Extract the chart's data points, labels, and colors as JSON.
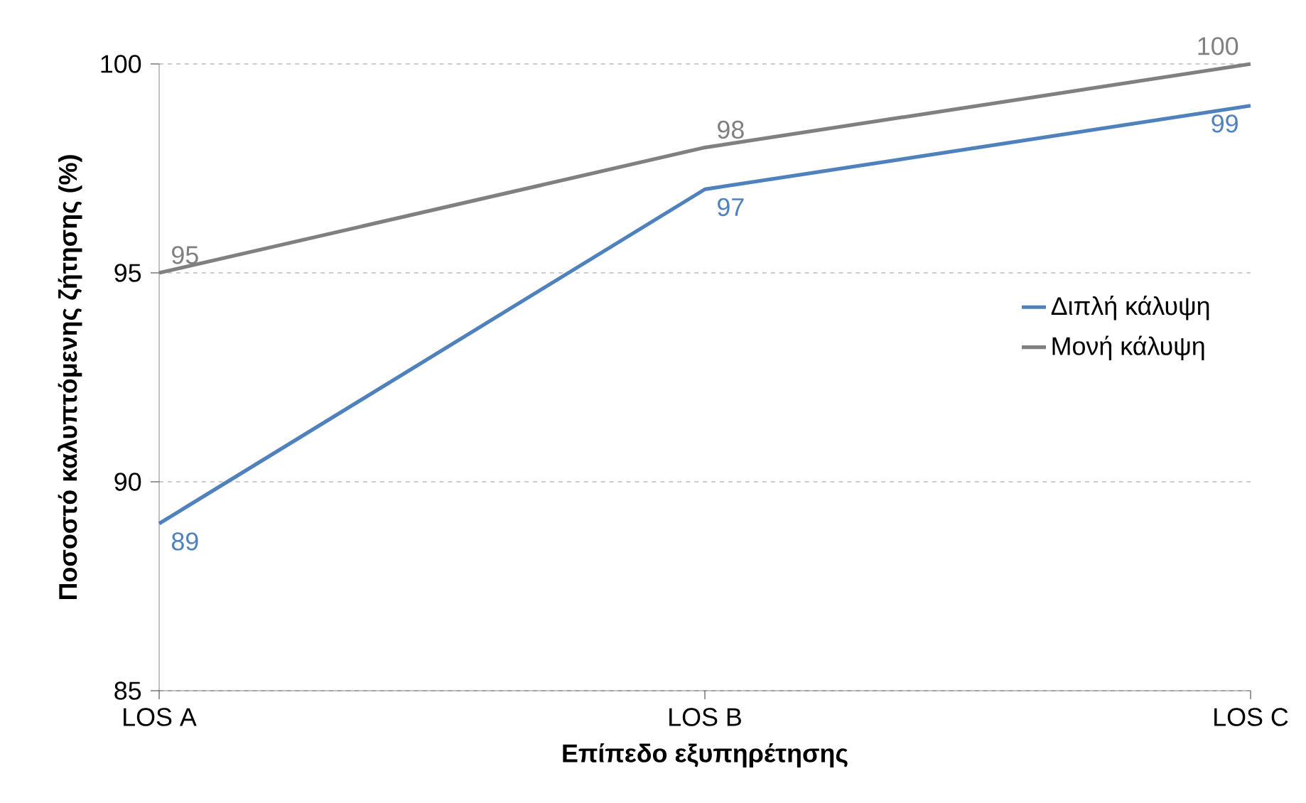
{
  "chart_data": {
    "type": "line",
    "xlabel": "Επίπεδο εξυπηρέτησης",
    "ylabel": "Ποσοστό καλυπτόμενης ζήτησης (%)",
    "categories": [
      "LOS A",
      "LOS B",
      "LOS C"
    ],
    "series": [
      {
        "name": "Διπλή κάλυψη",
        "color": "#4f81bd",
        "values": [
          89,
          97,
          99
        ]
      },
      {
        "name": "Μονή κάλυψη",
        "color": "#808080",
        "values": [
          95,
          98,
          100
        ]
      }
    ],
    "ylim": [
      85,
      100
    ],
    "yticks": [
      85,
      90,
      95,
      100
    ],
    "grid": "y",
    "legend": "right",
    "data_labels": true,
    "marker": "none",
    "line_style": "solid"
  }
}
